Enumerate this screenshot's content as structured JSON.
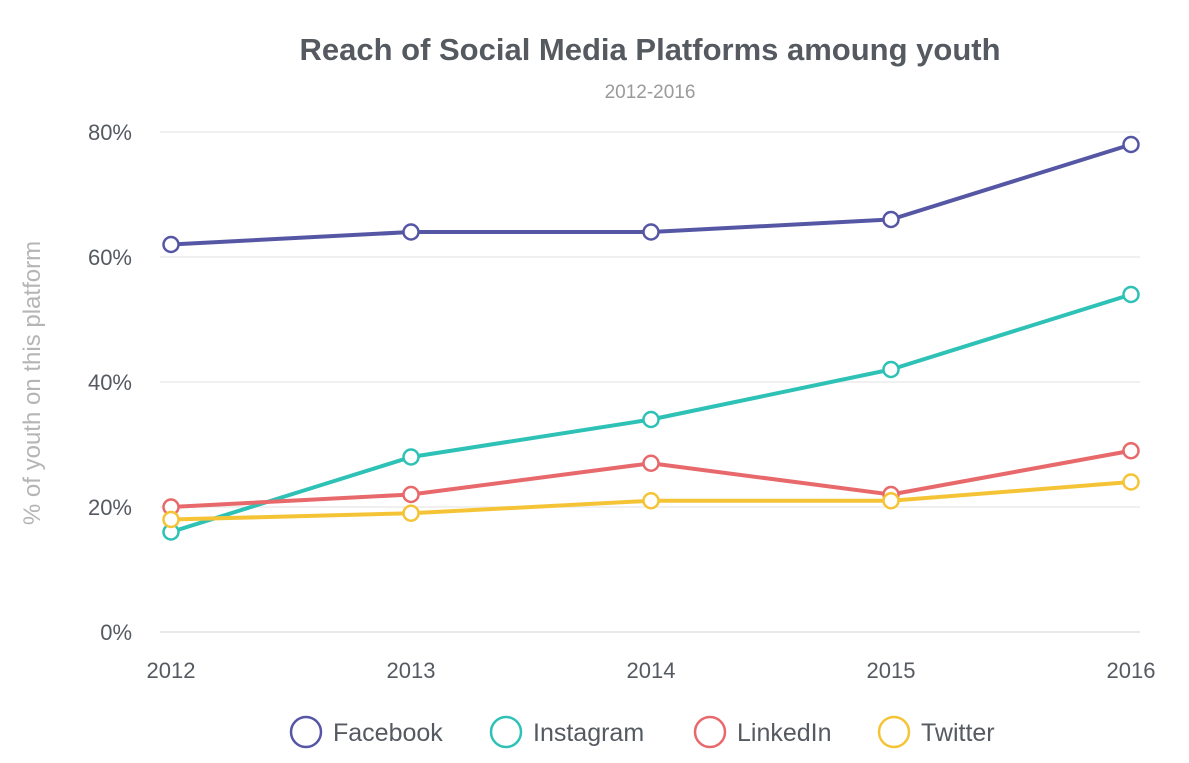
{
  "chart_data": {
    "type": "line",
    "title": "Reach of Social Media Platforms amoung youth",
    "subtitle": "2012-2016",
    "xlabel": "",
    "ylabel": "% of youth on this platform",
    "x": [
      "2012",
      "2013",
      "2014",
      "2015",
      "2016"
    ],
    "ylim": [
      0,
      80
    ],
    "yticks": [
      0,
      20,
      40,
      60,
      80
    ],
    "ytick_labels": [
      "0%",
      "20%",
      "40%",
      "60%",
      "80%"
    ],
    "grid": true,
    "legend_position": "bottom",
    "series": [
      {
        "name": "Facebook",
        "color": "#5557a5",
        "values": [
          62,
          64,
          64,
          66,
          78
        ]
      },
      {
        "name": "Instagram",
        "color": "#2ec1b5",
        "values": [
          16,
          28,
          34,
          42,
          54
        ]
      },
      {
        "name": "LinkedIn",
        "color": "#e8696b",
        "values": [
          20,
          22,
          27,
          22,
          29
        ]
      },
      {
        "name": "Twitter",
        "color": "#f5c436",
        "values": [
          18,
          19,
          21,
          21,
          24
        ]
      }
    ]
  }
}
